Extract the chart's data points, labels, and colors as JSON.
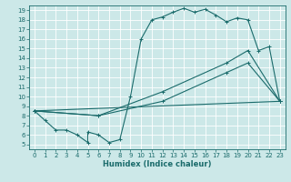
{
  "xlabel": "Humidex (Indice chaleur)",
  "xlim": [
    -0.5,
    23.5
  ],
  "ylim": [
    4.5,
    19.5
  ],
  "yticks": [
    5,
    6,
    7,
    8,
    9,
    10,
    11,
    12,
    13,
    14,
    15,
    16,
    17,
    18,
    19
  ],
  "xticks": [
    0,
    1,
    2,
    3,
    4,
    5,
    6,
    7,
    8,
    9,
    10,
    11,
    12,
    13,
    14,
    15,
    16,
    17,
    18,
    19,
    20,
    21,
    22,
    23
  ],
  "bg_color": "#cce8e8",
  "line_color": "#1a6b6b",
  "line1_x": [
    0,
    1,
    2,
    3,
    4,
    5,
    5,
    6,
    7,
    8,
    9,
    10,
    11,
    12,
    13,
    14,
    15,
    16,
    17,
    18,
    19,
    20,
    21,
    22,
    23
  ],
  "line1_y": [
    8.5,
    7.5,
    6.5,
    6.5,
    6.0,
    5.2,
    6.3,
    6.0,
    5.2,
    5.5,
    10.0,
    16.0,
    18.0,
    18.3,
    18.8,
    19.2,
    18.8,
    19.1,
    18.5,
    17.8,
    18.2,
    18.0,
    14.8,
    15.2,
    9.5
  ],
  "line2_x": [
    0,
    6,
    12,
    18,
    20,
    23
  ],
  "line2_y": [
    8.5,
    8.0,
    10.5,
    13.5,
    14.8,
    9.5
  ],
  "line3_x": [
    0,
    6,
    12,
    18,
    20,
    23
  ],
  "line3_y": [
    8.5,
    8.0,
    9.5,
    12.5,
    13.5,
    9.5
  ],
  "line4_x": [
    0,
    23
  ],
  "line4_y": [
    8.5,
    9.5
  ]
}
